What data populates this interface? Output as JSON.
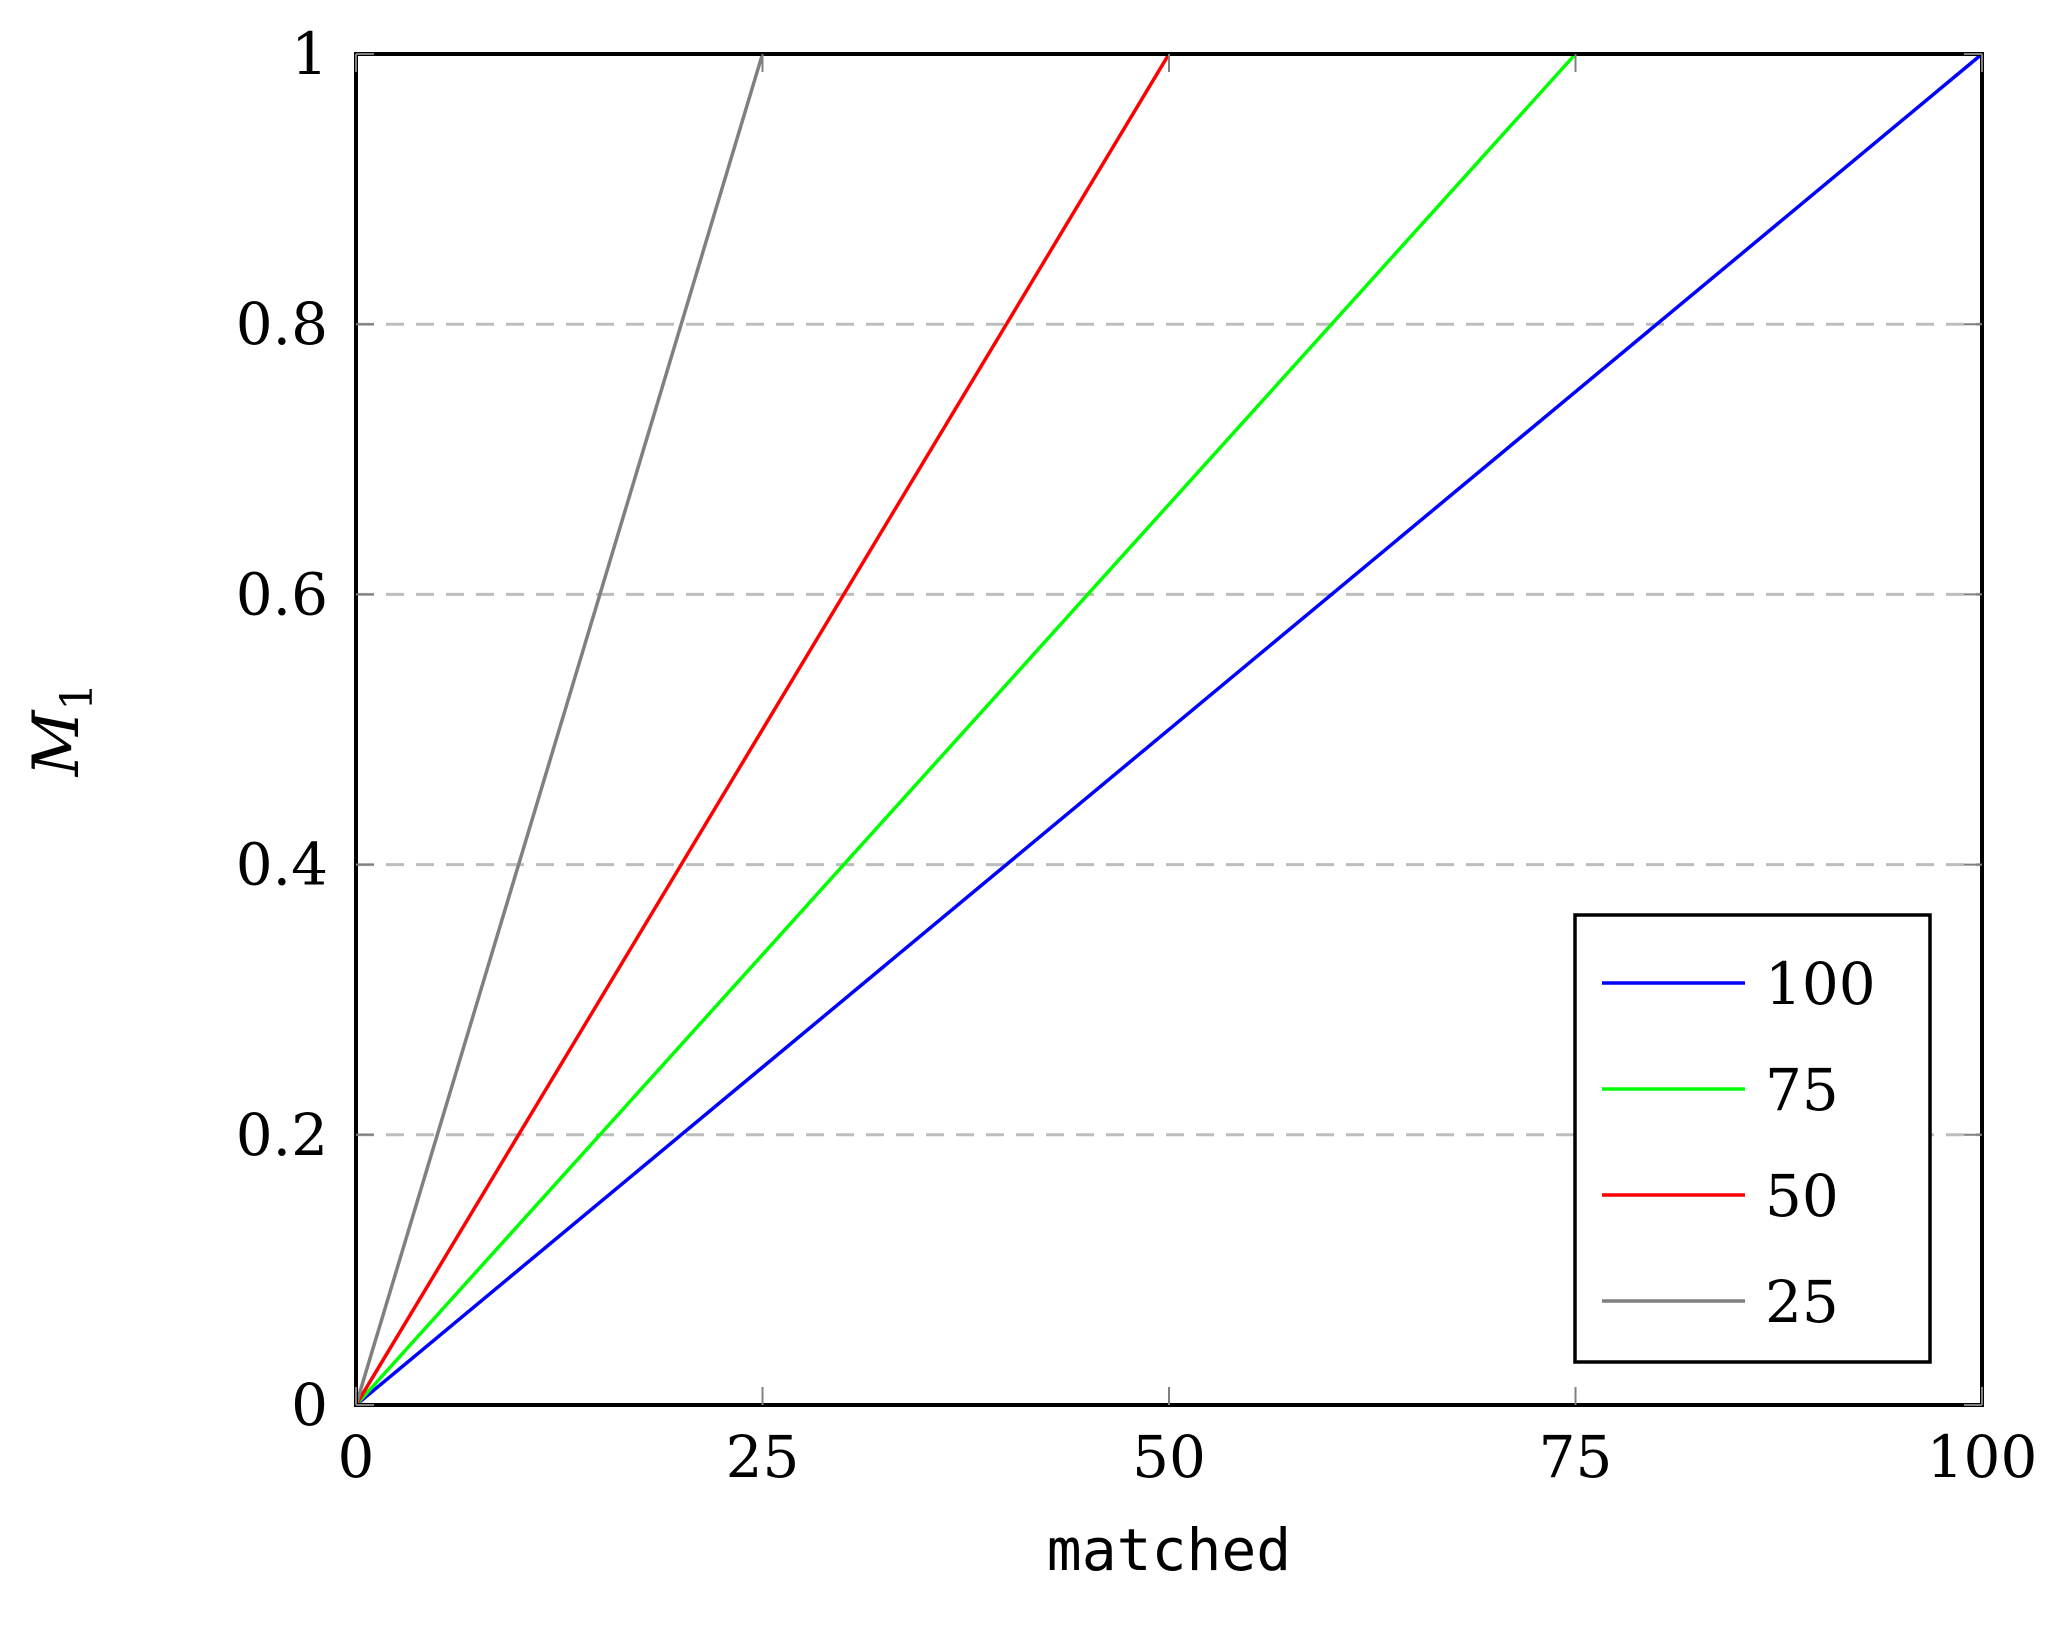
{
  "chart_data": {
    "type": "line",
    "xlabel": "matched",
    "ylabel": "M",
    "ylabel_subscript": "1",
    "xlim": [
      0,
      100
    ],
    "ylim": [
      0,
      1
    ],
    "xticks": [
      0,
      25,
      50,
      75,
      100
    ],
    "yticks": [
      0,
      0.2,
      0.4,
      0.6,
      0.8,
      1
    ],
    "xtick_labels": [
      "0",
      "25",
      "50",
      "75",
      "100"
    ],
    "ytick_labels": [
      "0",
      "0.2",
      "0.4",
      "0.6",
      "0.8",
      "1"
    ],
    "grid": "horizontal dashed",
    "legend_position": "bottom-right",
    "series": [
      {
        "name": "100",
        "color": "#0000ff",
        "x": [
          0,
          100
        ],
        "y": [
          0,
          1
        ]
      },
      {
        "name": "75",
        "color": "#00ff00",
        "x": [
          0,
          75
        ],
        "y": [
          0,
          1
        ]
      },
      {
        "name": "50",
        "color": "#ff0000",
        "x": [
          0,
          50
        ],
        "y": [
          0,
          1
        ]
      },
      {
        "name": "25",
        "color": "#808080",
        "x": [
          0,
          25
        ],
        "y": [
          0,
          1
        ]
      }
    ]
  }
}
